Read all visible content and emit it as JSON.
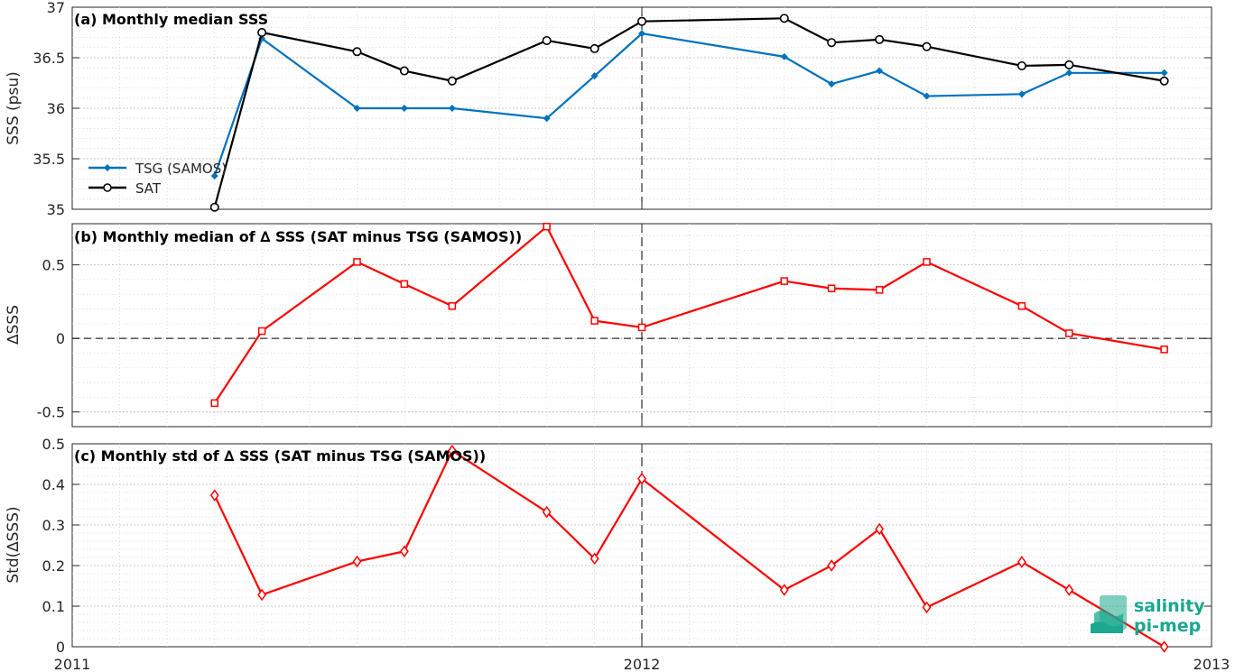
{
  "chart_data": [
    {
      "type": "line",
      "title": "(a) Monthly median SSS",
      "ylabel": "SSS (psu)",
      "ylim": [
        35,
        37
      ],
      "yticks": [
        35,
        35.5,
        36,
        36.5,
        37
      ],
      "ytick_labels": [
        "35",
        "35.5",
        "36",
        "36.5",
        "37"
      ],
      "legend_position": "middle-left",
      "x": [
        2011.25,
        2011.333,
        2011.5,
        2011.583,
        2011.667,
        2011.833,
        2011.917,
        2012.0,
        2012.25,
        2012.333,
        2012.417,
        2012.5,
        2012.667,
        2012.75,
        2012.917
      ],
      "series": [
        {
          "name": "TSG (SAMOS)",
          "color": "#0072BD",
          "marker": "diamond-filled",
          "values": [
            35.33,
            36.69,
            36.0,
            36.0,
            36.0,
            35.9,
            36.32,
            36.74,
            36.51,
            36.24,
            36.37,
            36.12,
            36.14,
            36.35,
            36.35
          ]
        },
        {
          "name": "SAT",
          "color": "#000000",
          "marker": "circle-open",
          "values": [
            35.02,
            36.75,
            36.56,
            36.37,
            36.27,
            36.67,
            36.59,
            36.86,
            36.89,
            36.65,
            36.68,
            36.61,
            36.42,
            36.43,
            36.27
          ]
        }
      ],
      "grid": true
    },
    {
      "type": "line",
      "title": "(b) Monthly median of ∆ SSS (SAT minus TSG (SAMOS))",
      "ylabel": "∆SSS",
      "ylim": [
        -0.6,
        0.78
      ],
      "yticks": [
        -0.5,
        0,
        0.5
      ],
      "ytick_labels": [
        "-0.5",
        "0",
        "0.5"
      ],
      "x": [
        2011.25,
        2011.333,
        2011.5,
        2011.583,
        2011.667,
        2011.833,
        2011.917,
        2012.0,
        2012.25,
        2012.333,
        2012.417,
        2012.5,
        2012.667,
        2012.75,
        2012.917
      ],
      "series": [
        {
          "color": "#FF0000",
          "marker": "square-open",
          "values": [
            -0.44,
            0.05,
            0.52,
            0.37,
            0.22,
            0.76,
            0.12,
            0.075,
            0.39,
            0.34,
            0.33,
            0.52,
            0.22,
            0.035,
            -0.075
          ]
        }
      ],
      "zero_line": true,
      "grid": true
    },
    {
      "type": "line",
      "title": "(c) Monthly std of ∆ SSS (SAT minus TSG (SAMOS))",
      "ylabel": "Std(∆SSS)",
      "ylim": [
        0,
        0.5
      ],
      "yticks": [
        0,
        0.1,
        0.2,
        0.3,
        0.4,
        0.5
      ],
      "ytick_labels": [
        "0",
        "0.1",
        "0.2",
        "0.3",
        "0.4",
        "0.5"
      ],
      "x": [
        2011.25,
        2011.333,
        2011.5,
        2011.583,
        2011.667,
        2011.833,
        2011.917,
        2012.0,
        2012.25,
        2012.333,
        2012.417,
        2012.5,
        2012.667,
        2012.75,
        2012.917
      ],
      "series": [
        {
          "color": "#FF0000",
          "marker": "diamond-open",
          "values": [
            0.373,
            0.128,
            0.21,
            0.235,
            0.483,
            0.332,
            0.217,
            0.414,
            0.14,
            0.2,
            0.29,
            0.097,
            0.209,
            0.14,
            0.0
          ]
        }
      ],
      "grid": true
    }
  ],
  "x_axis": {
    "xlim": [
      2011,
      2013
    ],
    "ticks": [
      2011,
      2012,
      2013
    ],
    "tick_labels": [
      "2011",
      "2012",
      "2013"
    ],
    "reference_line": 2012
  },
  "logo": {
    "line1": "salinity",
    "line2": "pi-mep"
  },
  "colors": {
    "tsg": "#0072BD",
    "sat": "#000000",
    "delta": "#FF0000",
    "logo": "#1aa88e"
  }
}
